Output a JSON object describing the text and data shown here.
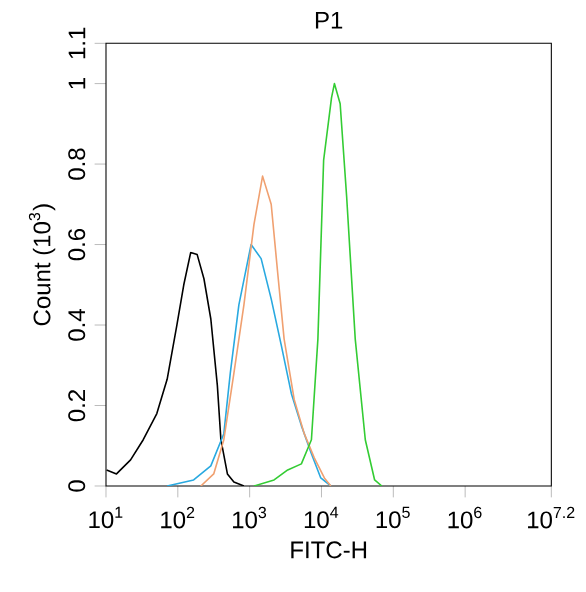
{
  "chart_data": {
    "type": "line",
    "title": "P1",
    "xlabel": "FITC-H",
    "ylabel": "Count (10$^{3}$)",
    "log": "x",
    "marker": "none",
    "line_style": "solid",
    "xlim": [
      10,
      15848932
    ],
    "xticks": [
      {
        "value": 10,
        "label": "10$^{1}$"
      },
      {
        "value": 100,
        "label": "10$^{2}$"
      },
      {
        "value": 1000,
        "label": "10$^{3}$"
      },
      {
        "value": 10000,
        "label": "10$^{4}$"
      },
      {
        "value": 100000,
        "label": "10$^{5}$"
      },
      {
        "value": 1000000,
        "label": "10$^{6}$"
      },
      {
        "value": 15848932,
        "label": "10$^{7.2}$"
      }
    ],
    "ylim": [
      0,
      1.1
    ],
    "yticks": [
      0,
      0.2,
      0.4,
      0.6,
      0.8,
      1,
      1.1
    ],
    "series": [
      {
        "color": "#000000",
        "x": [
          10.2,
          14,
          22,
          33,
          51,
          71,
          97,
          121,
          151,
          186,
          231,
          288,
          355,
          398,
          490,
          603,
          832
        ],
        "values": [
          0.04,
          0.03,
          0.065,
          0.115,
          0.18,
          0.265,
          0.4,
          0.5,
          0.58,
          0.575,
          0.515,
          0.415,
          0.25,
          0.115,
          0.03,
          0.01,
          0
        ]
      },
      {
        "color": "#29a9e0",
        "x": [
          71,
          166,
          288,
          437,
          537,
          708,
          1047,
          1445,
          1995,
          2754,
          3802,
          5248,
          7244,
          9772,
          13490
        ],
        "values": [
          0,
          0.015,
          0.05,
          0.13,
          0.28,
          0.45,
          0.6,
          0.565,
          0.465,
          0.35,
          0.23,
          0.15,
          0.08,
          0.02,
          0
        ]
      },
      {
        "color": "#f0a070",
        "x": [
          209,
          316,
          437,
          603,
          832,
          1148,
          1514,
          1995,
          2455,
          3020,
          4169,
          5754,
          7943,
          10965,
          13490
        ],
        "values": [
          0,
          0.03,
          0.115,
          0.28,
          0.45,
          0.65,
          0.77,
          0.7,
          0.53,
          0.365,
          0.215,
          0.13,
          0.07,
          0.02,
          0
        ]
      },
      {
        "color": "#33cc33",
        "x": [
          1148,
          2188,
          3388,
          5248,
          7244,
          8913,
          10715,
          13800,
          15136,
          18197,
          22387,
          29512,
          40738,
          54954,
          69183
        ],
        "values": [
          0,
          0.015,
          0.04,
          0.055,
          0.115,
          0.365,
          0.81,
          0.965,
          1.0,
          0.95,
          0.72,
          0.365,
          0.115,
          0.015,
          0
        ]
      }
    ]
  }
}
